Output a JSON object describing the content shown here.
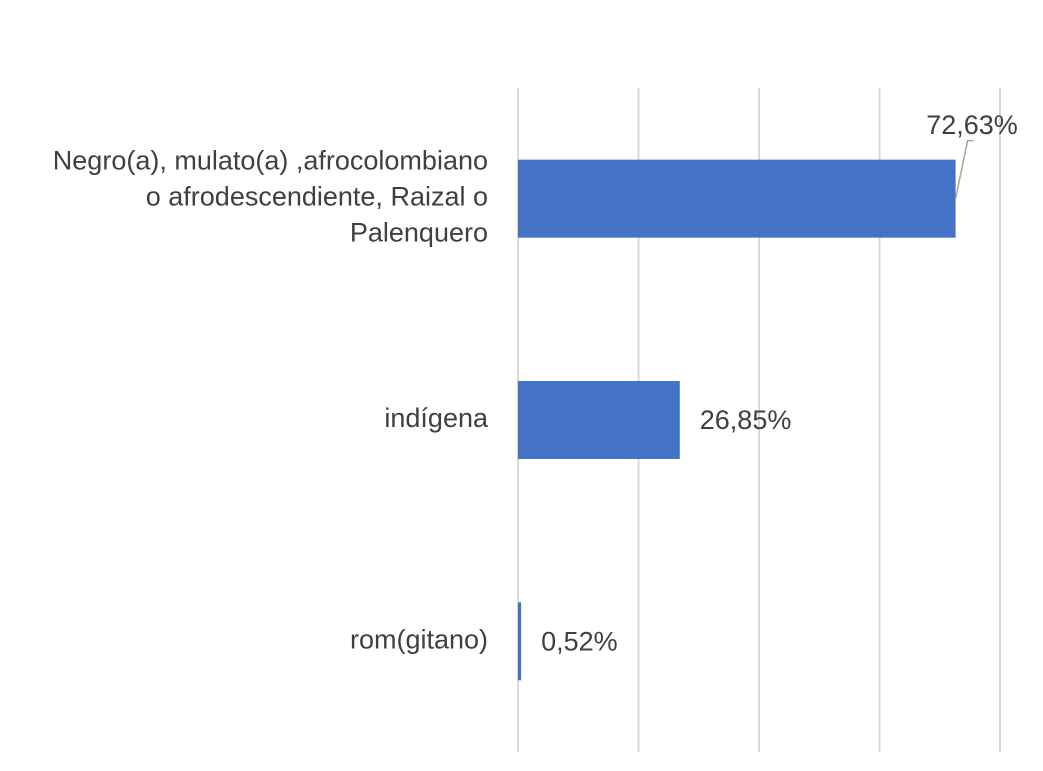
{
  "chart_data": {
    "type": "bar",
    "orientation": "horizontal",
    "categories": [
      [
        "Negro(a), mulato(a) ,afrocolombiano",
        "o afrodescendiente, Raizal o",
        "Palenquero"
      ],
      [
        "indígena"
      ],
      [
        "rom(gitano)"
      ]
    ],
    "values": [
      72.63,
      26.85,
      0.52
    ],
    "value_labels": [
      "72,63%",
      "26,85%",
      "0,52%"
    ],
    "xlim": [
      0,
      80
    ],
    "grid": true,
    "bar_color": "#4472c4"
  }
}
